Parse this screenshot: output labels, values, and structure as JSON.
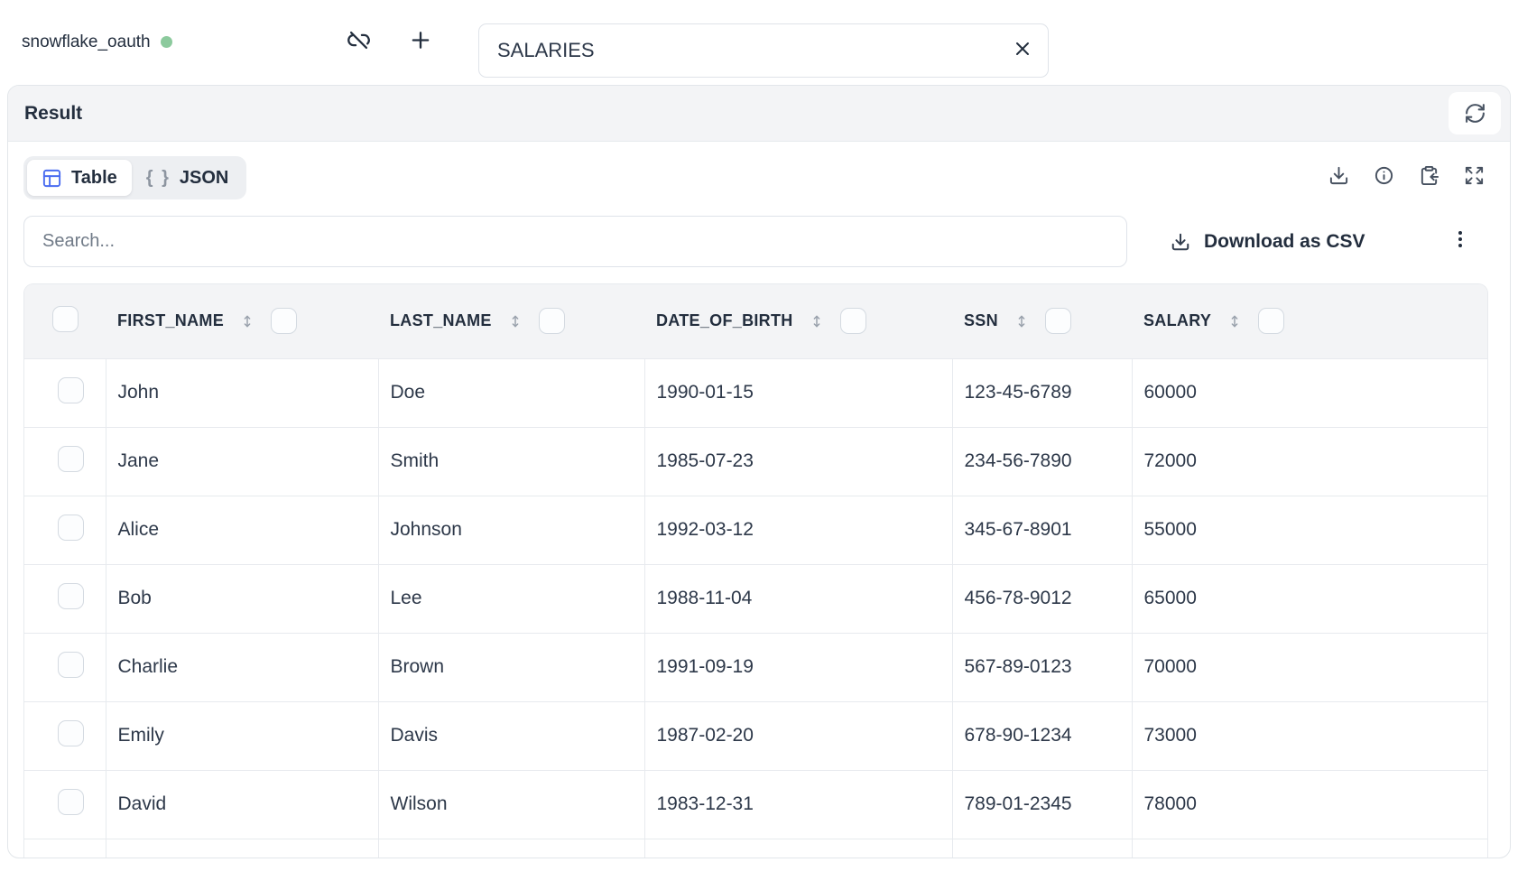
{
  "colors": {
    "accent_blue": "#4a6cf0",
    "status_green": "#8cca9d"
  },
  "topbar": {
    "connection_name": "snowflake_oauth",
    "connection_status": "connected",
    "unlink_icon": "link-off",
    "add_icon": "plus",
    "table_name_value": "SALARIES",
    "clear_icon": "x"
  },
  "result_panel": {
    "title": "Result",
    "refresh_icon": "refresh-cw",
    "view_tabs": [
      {
        "label": "Table",
        "icon": "table-grid-icon",
        "active": true
      },
      {
        "label": "JSON",
        "icon": "curly-braces-icon",
        "glyph": "{ }",
        "active": false
      }
    ],
    "toolbar_icons": [
      "download-icon",
      "info-icon",
      "clipboard-paste-icon",
      "expand-icon"
    ],
    "search_placeholder": "Search...",
    "download_csv_label": "Download as CSV",
    "more_icon": "kebab-vertical-icon"
  },
  "table": {
    "columns": [
      "FIRST_NAME",
      "LAST_NAME",
      "DATE_OF_BIRTH",
      "SSN",
      "SALARY"
    ],
    "rows": [
      [
        "John",
        "Doe",
        "1990-01-15",
        "123-45-6789",
        "60000"
      ],
      [
        "Jane",
        "Smith",
        "1985-07-23",
        "234-56-7890",
        "72000"
      ],
      [
        "Alice",
        "Johnson",
        "1992-03-12",
        "345-67-8901",
        "55000"
      ],
      [
        "Bob",
        "Lee",
        "1988-11-04",
        "456-78-9012",
        "65000"
      ],
      [
        "Charlie",
        "Brown",
        "1991-09-19",
        "567-89-0123",
        "70000"
      ],
      [
        "Emily",
        "Davis",
        "1987-02-20",
        "678-90-1234",
        "73000"
      ],
      [
        "David",
        "Wilson",
        "1983-12-31",
        "789-01-2345",
        "78000"
      ]
    ]
  }
}
